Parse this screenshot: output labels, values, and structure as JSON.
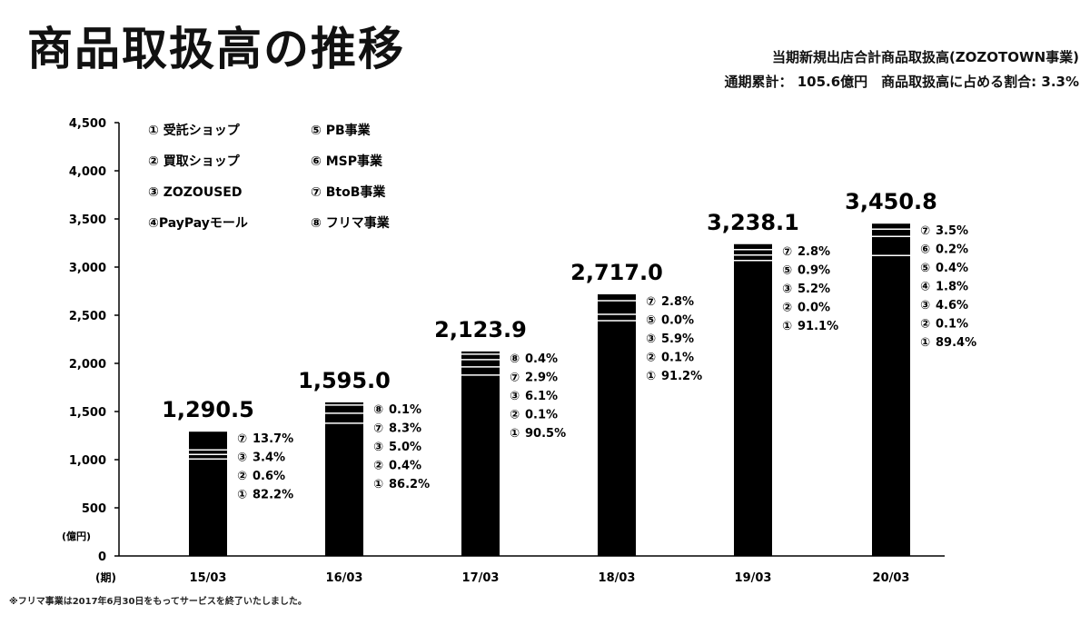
{
  "title": "商品取扱高の推移",
  "notes": {
    "line1": "当期新規出店合計商品取扱高(ZOZOTOWN事業)",
    "line2": "通期累計： 105.6億円　商品取扱高に占める割合: 3.3%"
  },
  "footnote": "※フリマ事業は2017年6月30日をもってサービスを終了いたしました。",
  "legend": [
    {
      "label": "① 受託ショップ"
    },
    {
      "label": "② 買取ショップ"
    },
    {
      "label": "③ ZOZOUSED"
    },
    {
      "label": "④PayPayモール"
    },
    {
      "label": "⑤ PB事業"
    },
    {
      "label": "⑥ MSP事業"
    },
    {
      "label": "⑦ BtoB事業"
    },
    {
      "label": "⑧ フリマ事業"
    }
  ],
  "chart_data": {
    "type": "bar",
    "categories": [
      "15/03",
      "16/03",
      "17/03",
      "18/03",
      "19/03",
      "20/03"
    ],
    "values": [
      1290.5,
      1595.0,
      2123.9,
      2717.0,
      3238.1,
      3450.8
    ],
    "value_labels": [
      "1,290.5",
      "1,595.0",
      "2,123.9",
      "2,717.0",
      "3,238.1",
      "3,450.8"
    ],
    "ylim": [
      0,
      4500
    ],
    "yticks": [
      "0",
      "500",
      "1,000",
      "1,500",
      "2,000",
      "2,500",
      "3,000",
      "3,500",
      "4,000",
      "4,500"
    ],
    "ylabel": "(億円)",
    "xlabel": "(期)",
    "breakdowns": [
      [
        {
          "m": "⑦",
          "v": "13.7%"
        },
        {
          "m": "③",
          "v": "3.4%"
        },
        {
          "m": "②",
          "v": "0.6%"
        },
        {
          "m": "①",
          "v": "82.2%"
        }
      ],
      [
        {
          "m": "⑧",
          "v": "0.1%"
        },
        {
          "m": "⑦",
          "v": "8.3%"
        },
        {
          "m": "③",
          "v": "5.0%"
        },
        {
          "m": "②",
          "v": "0.4%"
        },
        {
          "m": "①",
          "v": "86.2%"
        }
      ],
      [
        {
          "m": "⑧",
          "v": "0.4%"
        },
        {
          "m": "⑦",
          "v": "2.9%"
        },
        {
          "m": "③",
          "v": "6.1%"
        },
        {
          "m": "②",
          "v": "0.1%"
        },
        {
          "m": "①",
          "v": "90.5%"
        }
      ],
      [
        {
          "m": "⑦",
          "v": "2.8%"
        },
        {
          "m": "⑤",
          "v": "0.0%"
        },
        {
          "m": "③",
          "v": "5.9%"
        },
        {
          "m": "②",
          "v": "0.1%"
        },
        {
          "m": "①",
          "v": "91.2%"
        }
      ],
      [
        {
          "m": "⑦",
          "v": "2.8%"
        },
        {
          "m": "⑤",
          "v": "0.9%"
        },
        {
          "m": "③",
          "v": "5.2%"
        },
        {
          "m": "②",
          "v": "0.0%"
        },
        {
          "m": "①",
          "v": "91.1%"
        }
      ],
      [
        {
          "m": "⑦",
          "v": "3.5%"
        },
        {
          "m": "⑥",
          "v": "0.2%"
        },
        {
          "m": "⑤",
          "v": "0.4%"
        },
        {
          "m": "④",
          "v": "1.8%"
        },
        {
          "m": "③",
          "v": "4.6%"
        },
        {
          "m": "②",
          "v": "0.1%"
        },
        {
          "m": "①",
          "v": "89.4%"
        }
      ]
    ],
    "bar_color": "#000000",
    "separator_color": "#ffffff",
    "grid": false,
    "legend_position": "top-left"
  }
}
